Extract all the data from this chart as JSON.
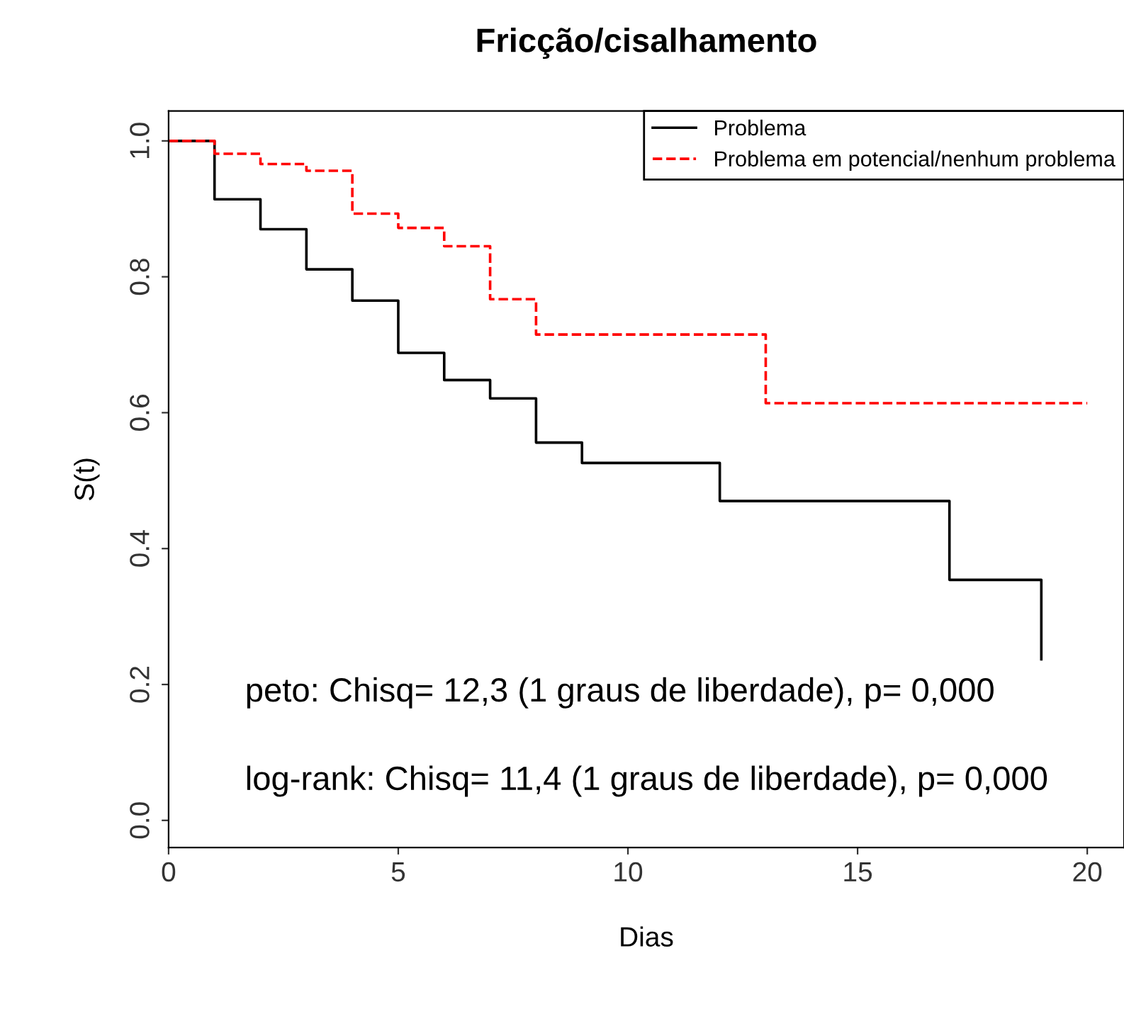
{
  "chart_data": {
    "type": "step",
    "title": "Fricção/cisalhamento",
    "xlabel": "Dias",
    "ylabel": "S(t)",
    "series": [
      {
        "name": "Problema",
        "color": "#000000",
        "line_style": "solid",
        "x": [
          0,
          1,
          2,
          3,
          4,
          5,
          6,
          7,
          8,
          9,
          12,
          17,
          19
        ],
        "values": [
          1.0,
          0.914,
          0.87,
          0.811,
          0.765,
          0.688,
          0.648,
          0.621,
          0.556,
          0.526,
          0.47,
          0.354,
          0.237
        ]
      },
      {
        "name": "Problema em potencial/nenhum problema",
        "color": "#ff0000",
        "line_style": "dashed",
        "x": [
          0,
          1,
          2,
          3,
          4,
          5,
          6,
          7,
          8,
          13,
          20
        ],
        "values": [
          1.0,
          0.981,
          0.966,
          0.956,
          0.893,
          0.872,
          0.845,
          0.767,
          0.715,
          0.614,
          0.614
        ]
      }
    ],
    "xlim": [
      0,
      20.8
    ],
    "ylim": [
      -0.04,
      1.044
    ],
    "xticks": [
      0,
      5,
      10,
      15,
      20
    ],
    "yticks": [
      {
        "value": 0,
        "label": "0.0"
      },
      {
        "value": 0.2,
        "label": "0.2"
      },
      {
        "value": 0.4,
        "label": "0.4"
      },
      {
        "value": 0.6,
        "label": "0.6"
      },
      {
        "value": 0.8,
        "label": "0.8"
      },
      {
        "value": 1,
        "label": "1.0"
      }
    ],
    "grid": false,
    "legend": "top right",
    "annotations": [
      "peto: Chisq= 12,3 (1 graus de liberdade), p= 0,000",
      "log-rank: Chisq= 11,4 (1 graus de liberdade), p= 0,000"
    ]
  }
}
